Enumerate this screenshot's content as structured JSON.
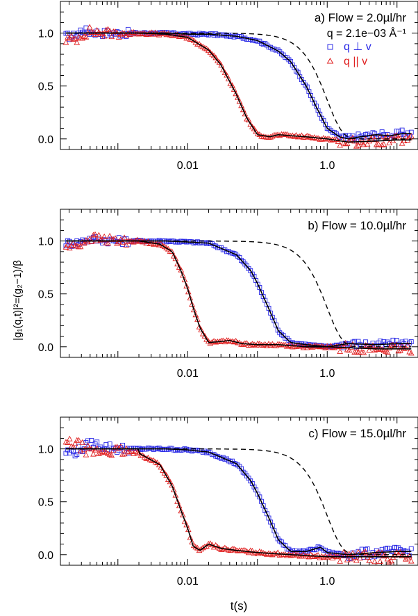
{
  "figure": {
    "ylabel": "|g₁(q,t)|²=(g₂−1)/β",
    "xlabel": "t(s)"
  },
  "colors": {
    "perp": "#2a2ae6",
    "par": "#e02020",
    "fit": "#000000",
    "reference": "#000000"
  },
  "chart_data": [
    {
      "type": "scatter",
      "panel": "a",
      "annotation": "a) Flow = 2.0µl/hr",
      "q_label": "q = 2.1e−03 Å⁻¹",
      "xlabel": "t(s)",
      "ylabel": "|g₁(q,t)|²=(g₂−1)/β",
      "x_scale": "log",
      "xlim": [
        0.00015,
        20
      ],
      "ylim": [
        -0.1,
        1.3
      ],
      "x_ticklabels": [
        "0.01",
        "1.0"
      ],
      "y_ticklabels": [
        "0.0",
        "0.5",
        "1.0"
      ],
      "legend": {
        "position": "top-right",
        "entries": [
          {
            "label": "q ⊥ v",
            "marker": "square",
            "color": "#2a2ae6"
          },
          {
            "label": "q || v",
            "marker": "triangle",
            "color": "#e02020"
          }
        ]
      },
      "series": [
        {
          "name": "q ⊥ v",
          "marker": "square",
          "color": "#2a2ae6",
          "tau": 0.62,
          "noise_amp": 0.025,
          "x": [
            0.00025,
            0.0003,
            0.0004,
            0.0006,
            0.001,
            0.002,
            0.005,
            0.01,
            0.02,
            0.05,
            0.1,
            0.2,
            0.3,
            0.5,
            0.7,
            1.0,
            1.5,
            2.0,
            3.0,
            5.0,
            8.0,
            12.0
          ],
          "y": [
            0.97,
            1.03,
            1.01,
            1.0,
            1.0,
            1.0,
            1.0,
            0.99,
            0.99,
            0.97,
            0.93,
            0.83,
            0.73,
            0.5,
            0.3,
            0.1,
            0.02,
            0.0,
            0.02,
            0.04,
            0.03,
            0.05
          ]
        },
        {
          "name": "q || v",
          "marker": "triangle",
          "color": "#e02020",
          "tau": 0.075,
          "noise_amp": 0.03,
          "x": [
            0.00025,
            0.0003,
            0.0004,
            0.0006,
            0.001,
            0.002,
            0.005,
            0.01,
            0.02,
            0.03,
            0.05,
            0.07,
            0.1,
            0.15,
            0.2,
            0.3,
            0.5,
            1.0,
            2.0,
            5.0,
            10.0
          ],
          "y": [
            0.94,
            0.98,
            1.02,
            1.0,
            1.0,
            1.0,
            0.99,
            0.96,
            0.84,
            0.7,
            0.42,
            0.2,
            0.04,
            0.02,
            0.04,
            0.03,
            0.02,
            0.0,
            -0.03,
            -0.02,
            -0.01
          ]
        }
      ],
      "fits": [
        {
          "tau": 0.62
        },
        {
          "tau": 0.075
        }
      ],
      "reference_tau": 1.0
    },
    {
      "type": "scatter",
      "panel": "b",
      "annotation": "b) Flow = 10.0µl/hr",
      "xlabel": "t(s)",
      "ylabel": "|g₁(q,t)|²=(g₂−1)/β",
      "x_scale": "log",
      "xlim": [
        0.00015,
        20
      ],
      "ylim": [
        -0.1,
        1.3
      ],
      "x_ticklabels": [
        "0.01",
        "1.0"
      ],
      "y_ticklabels": [
        "0.0",
        "0.5",
        "1.0"
      ],
      "series": [
        {
          "name": "q ⊥ v",
          "marker": "square",
          "color": "#2a2ae6",
          "tau": 0.128,
          "noise_amp": 0.025,
          "x": [
            0.00025,
            0.0004,
            0.001,
            0.002,
            0.005,
            0.01,
            0.02,
            0.05,
            0.08,
            0.1,
            0.15,
            0.2,
            0.3,
            0.5,
            1.0,
            2.0,
            5.0,
            10.0
          ],
          "y": [
            0.98,
            1.02,
            1.0,
            1.0,
            1.0,
            0.99,
            0.98,
            0.87,
            0.72,
            0.6,
            0.34,
            0.15,
            0.04,
            0.02,
            0.0,
            0.03,
            0.02,
            0.03
          ]
        },
        {
          "name": "q || v",
          "marker": "triangle",
          "color": "#e02020",
          "tau": 0.0145,
          "noise_amp": 0.03,
          "x": [
            0.00025,
            0.0004,
            0.001,
            0.002,
            0.004,
            0.006,
            0.008,
            0.01,
            0.012,
            0.015,
            0.02,
            0.03,
            0.04,
            0.06,
            0.1,
            0.2,
            0.5,
            1.0,
            5.0,
            10.0
          ],
          "y": [
            0.95,
            1.03,
            1.0,
            1.0,
            0.97,
            0.9,
            0.72,
            0.55,
            0.37,
            0.18,
            0.04,
            0.05,
            0.06,
            0.03,
            0.02,
            0.02,
            0.0,
            0.0,
            -0.02,
            -0.02
          ]
        }
      ],
      "fits": [
        {
          "tau": 0.128
        },
        {
          "tau": 0.0145
        }
      ],
      "reference_tau": 1.0
    },
    {
      "type": "scatter",
      "panel": "c",
      "annotation": "c) Flow = 15.0µl/hr",
      "xlabel": "t(s)",
      "ylabel": "|g₁(q,t)|²=(g₂−1)/β",
      "x_scale": "log",
      "xlim": [
        0.00015,
        20
      ],
      "ylim": [
        -0.1,
        1.3
      ],
      "x_ticklabels": [
        "0.01",
        "1.0"
      ],
      "y_ticklabels": [
        "0.0",
        "0.5",
        "1.0"
      ],
      "series": [
        {
          "name": "q ⊥ v",
          "marker": "square",
          "color": "#2a2ae6",
          "tau": 0.125,
          "noise_amp": 0.03,
          "x": [
            0.00025,
            0.0004,
            0.001,
            0.002,
            0.005,
            0.01,
            0.02,
            0.05,
            0.08,
            0.1,
            0.15,
            0.2,
            0.3,
            0.5,
            0.8,
            1.0,
            2.0,
            5.0,
            10.0
          ],
          "y": [
            0.97,
            1.05,
            1.0,
            1.0,
            1.0,
            0.99,
            0.97,
            0.86,
            0.7,
            0.58,
            0.33,
            0.14,
            0.03,
            0.03,
            0.07,
            0.02,
            0.0,
            0.02,
            0.03
          ]
        },
        {
          "name": "q || v",
          "marker": "triangle",
          "color": "#e02020",
          "tau": 0.0095,
          "noise_amp": 0.035,
          "x": [
            0.00025,
            0.0004,
            0.001,
            0.002,
            0.004,
            0.006,
            0.008,
            0.01,
            0.012,
            0.015,
            0.02,
            0.03,
            0.05,
            0.1,
            0.3,
            1.0,
            5.0,
            10.0
          ],
          "y": [
            1.05,
            0.97,
            0.98,
            0.96,
            0.85,
            0.65,
            0.42,
            0.25,
            0.08,
            0.04,
            0.1,
            0.06,
            0.04,
            0.02,
            0.0,
            -0.02,
            -0.02,
            -0.02
          ]
        }
      ],
      "fits": [
        {
          "tau": 0.125
        },
        {
          "tau": 0.0095
        }
      ],
      "reference_tau": 1.0
    }
  ]
}
